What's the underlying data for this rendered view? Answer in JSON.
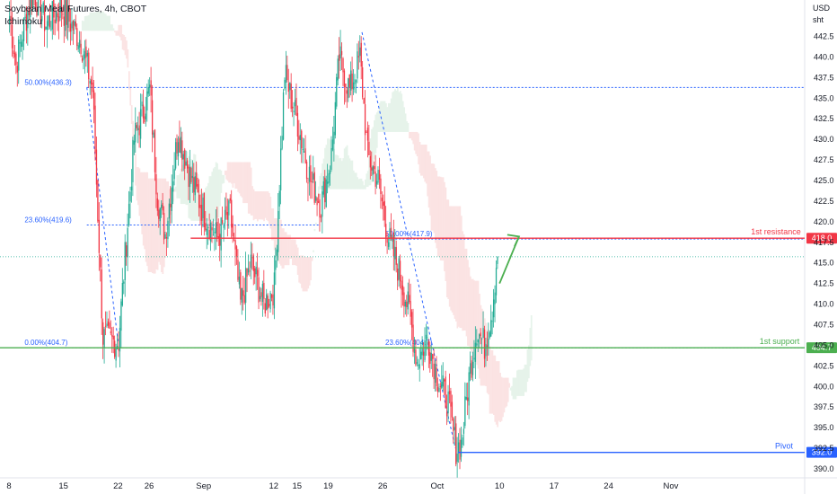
{
  "header": {
    "title": "Soybean Meal Futures, 4h, CBOT",
    "indicator": "Ichimoku"
  },
  "axis_unit": [
    "USD",
    "sht"
  ],
  "colors": {
    "up": "#22ab94",
    "down": "#f23645",
    "resistance": "#f23645",
    "support": "#4caf50",
    "pivot": "#2962ff",
    "fib": "#2962ff",
    "cloud_bull": "#e6f3ea",
    "cloud_bear": "#fbe3e3"
  },
  "chart_data": {
    "type": "line",
    "y_ticks": [
      "390.0",
      "392.5",
      "395.0",
      "397.5",
      "400.0",
      "402.5",
      "405.0",
      "407.5",
      "410.0",
      "412.5",
      "415.0",
      "417.5",
      "420.0",
      "422.5",
      "425.0",
      "427.5",
      "430.0",
      "432.5",
      "435.0",
      "437.5",
      "440.0",
      "442.5"
    ],
    "ylim": [
      389,
      446.5
    ],
    "x_ticks": [
      {
        "label": "8",
        "bar": 0
      },
      {
        "label": "15",
        "bar": 42
      },
      {
        "label": "22",
        "bar": 84
      },
      {
        "label": "26",
        "bar": 108
      },
      {
        "label": "Sep",
        "bar": 150
      },
      {
        "label": "12",
        "bar": 204
      },
      {
        "label": "15",
        "bar": 222
      },
      {
        "label": "19",
        "bar": 246
      },
      {
        "label": "26",
        "bar": 288
      },
      {
        "label": "Oct",
        "bar": 330
      },
      {
        "label": "10",
        "bar": 378
      },
      {
        "label": "17",
        "bar": 420
      },
      {
        "label": "24",
        "bar": 462
      },
      {
        "label": "Nov",
        "bar": 510
      }
    ],
    "price_anchors": [
      {
        "bar": 0,
        "price": 445
      },
      {
        "bar": 5,
        "price": 439
      },
      {
        "bar": 10,
        "price": 443
      },
      {
        "bar": 18,
        "price": 448
      },
      {
        "bar": 28,
        "price": 444
      },
      {
        "bar": 40,
        "price": 446
      },
      {
        "bar": 55,
        "price": 442
      },
      {
        "bar": 64,
        "price": 436
      },
      {
        "bar": 72,
        "price": 406
      },
      {
        "bar": 78,
        "price": 405.5
      },
      {
        "bar": 84,
        "price": 405.5
      },
      {
        "bar": 96,
        "price": 430
      },
      {
        "bar": 108,
        "price": 436
      },
      {
        "bar": 114,
        "price": 423
      },
      {
        "bar": 120,
        "price": 418.5
      },
      {
        "bar": 130,
        "price": 431
      },
      {
        "bar": 140,
        "price": 425
      },
      {
        "bar": 150,
        "price": 421
      },
      {
        "bar": 160,
        "price": 418
      },
      {
        "bar": 170,
        "price": 421
      },
      {
        "bar": 178,
        "price": 410
      },
      {
        "bar": 186,
        "price": 415
      },
      {
        "bar": 196,
        "price": 410
      },
      {
        "bar": 204,
        "price": 412
      },
      {
        "bar": 212,
        "price": 438
      },
      {
        "bar": 222,
        "price": 432
      },
      {
        "bar": 232,
        "price": 425
      },
      {
        "bar": 240,
        "price": 422
      },
      {
        "bar": 248,
        "price": 428
      },
      {
        "bar": 254,
        "price": 440
      },
      {
        "bar": 262,
        "price": 436
      },
      {
        "bar": 270,
        "price": 440
      },
      {
        "bar": 276,
        "price": 428
      },
      {
        "bar": 284,
        "price": 425
      },
      {
        "bar": 292,
        "price": 418
      },
      {
        "bar": 300,
        "price": 414
      },
      {
        "bar": 308,
        "price": 409
      },
      {
        "bar": 314,
        "price": 403
      },
      {
        "bar": 322,
        "price": 406
      },
      {
        "bar": 330,
        "price": 401
      },
      {
        "bar": 338,
        "price": 398
      },
      {
        "bar": 344,
        "price": 392.5
      },
      {
        "bar": 348,
        "price": 393
      },
      {
        "bar": 354,
        "price": 401
      },
      {
        "bar": 360,
        "price": 407
      },
      {
        "bar": 366,
        "price": 405
      },
      {
        "bar": 372,
        "price": 409.5
      },
      {
        "bar": 376,
        "price": 416.5
      }
    ],
    "levels": [
      {
        "name": "1st resistance",
        "price": 418.0,
        "label": "418.0",
        "color": "#f23645"
      },
      {
        "name": "1st support",
        "price": 404.7,
        "label": "404.7",
        "color": "#4caf50"
      },
      {
        "name": "Pivot",
        "price": 392.0,
        "label": "392.0",
        "color": "#2962ff"
      }
    ],
    "fib_labels": [
      {
        "text": "50.00%(436.3)",
        "price": 436.3
      },
      {
        "text": "23.60%(419.6)",
        "price": 419.6
      },
      {
        "text": "0.00%(404.7)",
        "price": 404.7
      },
      {
        "text": "50.00%(417.9)",
        "price": 417.9
      },
      {
        "text": "23.60%(404.7)",
        "price": 404.7
      }
    ]
  }
}
